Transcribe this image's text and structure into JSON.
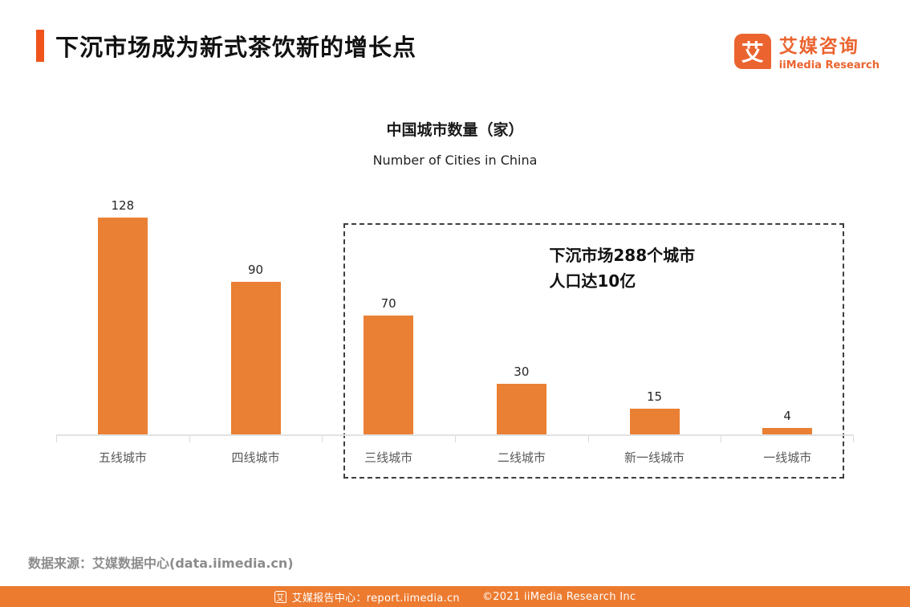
{
  "header": {
    "title": "下沉市场成为新式茶饮新的增长点",
    "logo": {
      "mark": "艾",
      "name_cn": "艾媒咨询",
      "name_en": "iiMedia Research"
    }
  },
  "chart_data": {
    "type": "bar",
    "title": "中国城市数量（家）",
    "subtitle": "Number of Cities in China",
    "categories": [
      "五线城市",
      "四线城市",
      "三线城市",
      "二线城市",
      "新一线城市",
      "一线城市"
    ],
    "values": [
      128,
      90,
      70,
      30,
      15,
      4
    ],
    "ylim": [
      0,
      130
    ],
    "grid": false,
    "legend": "none",
    "bar_color": "#ea8033",
    "annotation": {
      "line1": "下沉市场288个城市",
      "line2": "人口达10亿",
      "applies_to": [
        "三线城市",
        "二线城市",
        "新一线城市",
        "一线城市"
      ]
    }
  },
  "footer": {
    "source": "数据来源：艾媒数据中心(data.iimedia.cn)",
    "bar": {
      "logo_mark": "艾",
      "report_center": "艾媒报告中心：report.iimedia.cn",
      "copyright": "©2021  iiMedia Research Inc"
    }
  },
  "colors": {
    "brand_orange": "#eb6430",
    "accent_bar": "#f0531c",
    "bar_orange": "#ea8033",
    "footer_bar": "#ec7b30"
  }
}
